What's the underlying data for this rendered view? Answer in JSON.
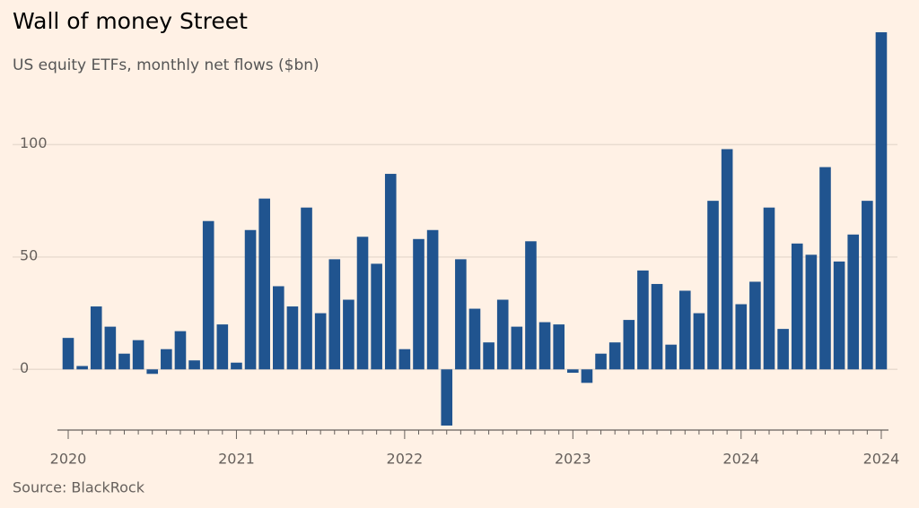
{
  "chart_data": {
    "type": "bar",
    "title": "Wall of money Street",
    "subtitle": "US equity ETFs, monthly net flows ($bn)",
    "source": "Source: BlackRock",
    "color": "#20548f",
    "categories": [
      "2020",
      null,
      null,
      null,
      null,
      null,
      null,
      null,
      null,
      null,
      null,
      null,
      "2021",
      null,
      null,
      null,
      null,
      null,
      null,
      null,
      null,
      null,
      null,
      null,
      "2022",
      null,
      null,
      null,
      null,
      null,
      null,
      null,
      null,
      null,
      null,
      null,
      "2023",
      null,
      null,
      null,
      null,
      null,
      null,
      null,
      null,
      null,
      null,
      null,
      "2024",
      null,
      null,
      null,
      null,
      null,
      null,
      null,
      null,
      null,
      "2024"
    ],
    "values": [
      14,
      1.5,
      28,
      19,
      7,
      13,
      -2,
      9,
      17,
      4,
      66,
      20,
      3,
      62,
      76,
      37,
      28,
      72,
      25,
      49,
      31,
      59,
      47,
      87,
      9,
      58,
      62,
      -25,
      49,
      27,
      12,
      31,
      19,
      57,
      21,
      20,
      -1.5,
      -6,
      7,
      12,
      22,
      44,
      38,
      11,
      35,
      25,
      75,
      98,
      29,
      39,
      72,
      18,
      56,
      51,
      90,
      48,
      60,
      75,
      150
    ],
    "ylim": [
      -27,
      152
    ],
    "yticks": [
      0,
      50,
      100
    ],
    "grid": true
  }
}
